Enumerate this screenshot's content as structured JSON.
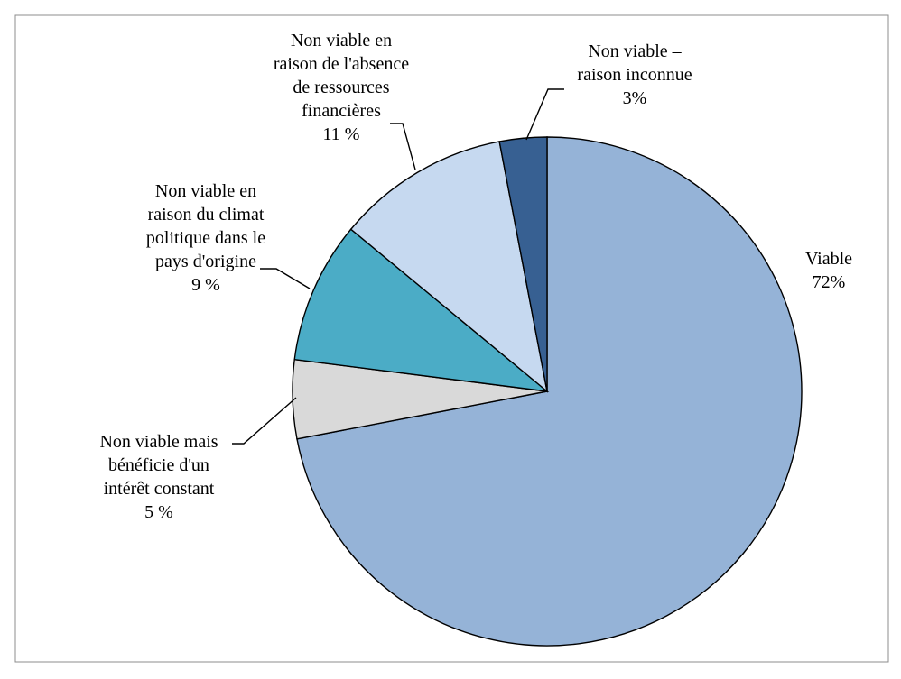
{
  "chart_data": {
    "type": "pie",
    "start": "12 o'clock",
    "direction": "clockwise",
    "slices": [
      {
        "key": "viable",
        "lines": [
          "Viable",
          "72%"
        ],
        "value": 72,
        "color": "#95b3d7"
      },
      {
        "key": "constant-interest",
        "lines": [
          "Non viable mais",
          "bénéficie d'un",
          "intérêt constant",
          "5 %"
        ],
        "value": 5,
        "color": "#d9d9d9"
      },
      {
        "key": "political-climate",
        "lines": [
          "Non viable en",
          "raison du climat",
          "politique dans le",
          "pays d'origine",
          "9 %"
        ],
        "value": 9,
        "color": "#4bacc6"
      },
      {
        "key": "financial",
        "lines": [
          "Non viable en",
          "raison de l'absence",
          "de ressources",
          "financières",
          "11 %"
        ],
        "value": 11,
        "color": "#c6d9f0"
      },
      {
        "key": "unknown",
        "lines": [
          "Non viable –",
          "raison inconnue",
          "3%"
        ],
        "value": 3,
        "color": "#376092"
      }
    ],
    "legend": "none",
    "data_labels": "outside with leader lines"
  }
}
